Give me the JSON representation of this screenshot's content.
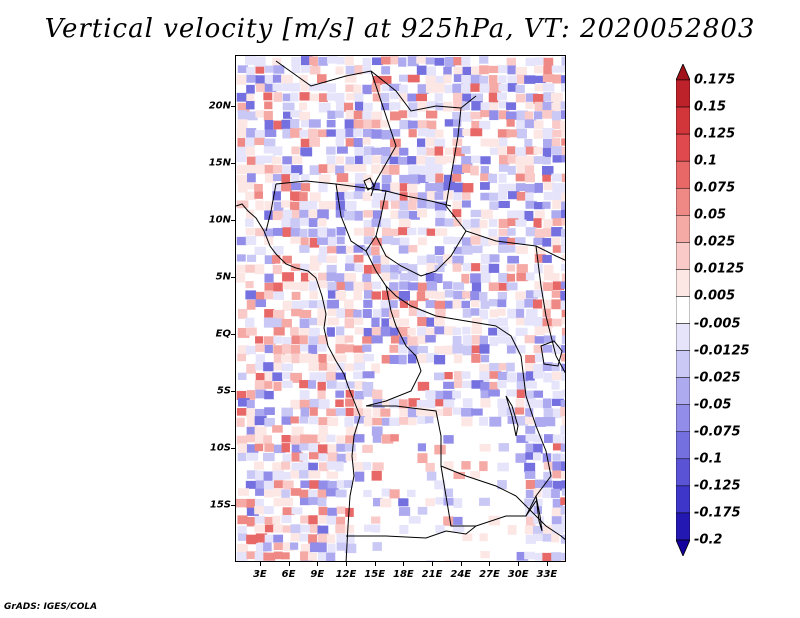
{
  "title": "Vertical velocity [m/s] at 925hPa, VT: 2020052803",
  "credit": "GrADS: IGES/COLA",
  "map": {
    "lat_labels": [
      "20N",
      "15N",
      "10N",
      "5N",
      "EQ",
      "5S",
      "10S",
      "15S"
    ],
    "lat_values": [
      20,
      15,
      10,
      5,
      0,
      -5,
      -10,
      -15
    ],
    "lon_labels": [
      "3E",
      "6E",
      "9E",
      "12E",
      "15E",
      "18E",
      "21E",
      "24E",
      "27E",
      "30E",
      "33E"
    ],
    "lon_values": [
      3,
      6,
      9,
      12,
      15,
      18,
      21,
      24,
      27,
      30,
      33
    ],
    "lat_range": [
      -20,
      24.5
    ],
    "lon_range": [
      0.4,
      35
    ]
  },
  "colorbar": {
    "labels": [
      "0.175",
      "0.15",
      "0.125",
      "0.1",
      "0.075",
      "0.05",
      "0.025",
      "0.0125",
      "0.005",
      "-0.005",
      "-0.0125",
      "-0.025",
      "-0.05",
      "-0.075",
      "-0.1",
      "-0.125",
      "-0.175",
      "-0.2"
    ],
    "colors": [
      "#a1121b",
      "#bd2129",
      "#d2353a",
      "#e04a4e",
      "#e86767",
      "#ef8985",
      "#f5aaa6",
      "#f9cac7",
      "#fce7e5",
      "#ffffff",
      "#e5e4fb",
      "#cac9f6",
      "#aeaaf0",
      "#918de9",
      "#7570e0",
      "#5a53d6",
      "#3e36c8",
      "#2418b2",
      "#14009c"
    ]
  }
}
